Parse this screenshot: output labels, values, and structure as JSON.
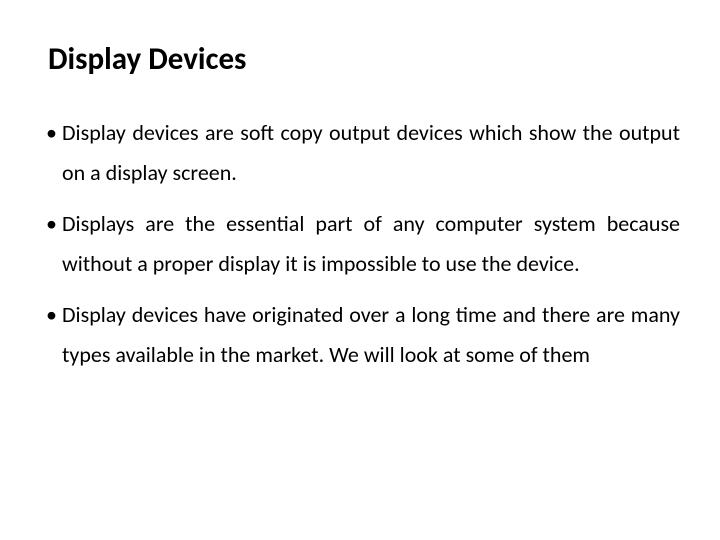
{
  "slide": {
    "title": "Display Devices",
    "bullets": [
      "Display devices are soft copy output devices which show the output on a display screen.",
      "Displays are the essential part of any computer system because without a proper display it is impossible to use the device.",
      "Display devices have originated over a long time and there are many types available in the market. We will look at some of them"
    ]
  },
  "styling": {
    "background_color": "#ffffff",
    "text_color": "#000000",
    "title_fontsize": 31,
    "title_fontweight": 700,
    "body_fontsize": 22,
    "line_height": 1.8,
    "font_family": "Calibri"
  }
}
